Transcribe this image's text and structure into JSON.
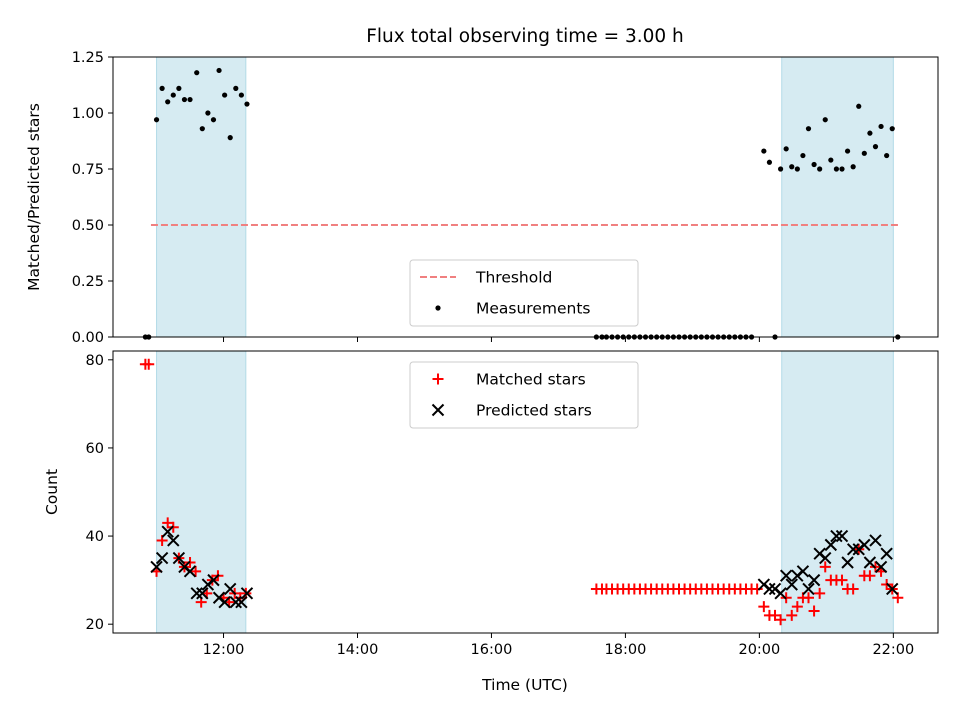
{
  "chart_data": {
    "type": "scatter",
    "title": "Flux total observing time = 3.00 h",
    "xlabel": "Time (UTC)",
    "x_unit": "hours UTC",
    "xlim": [
      "10:21",
      "22:40"
    ],
    "xticks": [
      "12:00",
      "14:00",
      "16:00",
      "18:00",
      "20:00",
      "22:00"
    ],
    "shaded_spans": [
      {
        "start": "11:00",
        "end": "12:20",
        "color": "#add8e6"
      },
      {
        "start": "20:20",
        "end": "22:00",
        "color": "#add8e6"
      }
    ],
    "panels": [
      {
        "name": "ratio",
        "ylabel": "Matched/Predicted stars",
        "ylim": [
          0,
          1.25
        ],
        "yticks": [
          "0.00",
          "0.25",
          "0.50",
          "0.75",
          "1.00",
          "1.25"
        ],
        "legend": "lower-center",
        "series": [
          {
            "name": "Threshold",
            "type": "hline",
            "y": 0.5,
            "x_range": [
              "10:55",
              "22:05"
            ],
            "color": "#f08080",
            "style": "dashed"
          },
          {
            "name": "Measurements",
            "type": "dots",
            "color": "#000000",
            "points": [
              [
                "10:50",
                0.0
              ],
              [
                "10:53",
                0.0
              ],
              [
                "11:00",
                0.97
              ],
              [
                "11:05",
                1.11
              ],
              [
                "11:10",
                1.05
              ],
              [
                "11:15",
                1.08
              ],
              [
                "11:20",
                1.11
              ],
              [
                "11:25",
                1.06
              ],
              [
                "11:30",
                1.06
              ],
              [
                "11:36",
                1.18
              ],
              [
                "11:41",
                0.93
              ],
              [
                "11:46",
                1.0
              ],
              [
                "11:51",
                0.97
              ],
              [
                "11:56",
                1.19
              ],
              [
                "12:01",
                1.08
              ],
              [
                "12:06",
                0.89
              ],
              [
                "12:11",
                1.11
              ],
              [
                "12:16",
                1.08
              ],
              [
                "12:21",
                1.04
              ],
              [
                "17:34",
                0.0
              ],
              [
                "17:39",
                0.0
              ],
              [
                "17:43",
                0.0
              ],
              [
                "17:48",
                0.0
              ],
              [
                "17:53",
                0.0
              ],
              [
                "17:58",
                0.0
              ],
              [
                "18:03",
                0.0
              ],
              [
                "18:08",
                0.0
              ],
              [
                "18:13",
                0.0
              ],
              [
                "18:18",
                0.0
              ],
              [
                "18:23",
                0.0
              ],
              [
                "18:28",
                0.0
              ],
              [
                "18:33",
                0.0
              ],
              [
                "18:38",
                0.0
              ],
              [
                "18:43",
                0.0
              ],
              [
                "18:48",
                0.0
              ],
              [
                "18:53",
                0.0
              ],
              [
                "18:58",
                0.0
              ],
              [
                "19:03",
                0.0
              ],
              [
                "19:08",
                0.0
              ],
              [
                "19:13",
                0.0
              ],
              [
                "19:18",
                0.0
              ],
              [
                "19:23",
                0.0
              ],
              [
                "19:28",
                0.0
              ],
              [
                "19:33",
                0.0
              ],
              [
                "19:38",
                0.0
              ],
              [
                "19:43",
                0.0
              ],
              [
                "19:48",
                0.0
              ],
              [
                "19:53",
                0.0
              ],
              [
                "20:04",
                0.83
              ],
              [
                "20:09",
                0.78
              ],
              [
                "20:14",
                0.0
              ],
              [
                "20:19",
                0.75
              ],
              [
                "20:24",
                0.84
              ],
              [
                "20:29",
                0.76
              ],
              [
                "20:34",
                0.75
              ],
              [
                "20:39",
                0.81
              ],
              [
                "20:44",
                0.93
              ],
              [
                "20:49",
                0.77
              ],
              [
                "20:54",
                0.75
              ],
              [
                "20:59",
                0.97
              ],
              [
                "21:04",
                0.79
              ],
              [
                "21:09",
                0.75
              ],
              [
                "21:14",
                0.75
              ],
              [
                "21:19",
                0.83
              ],
              [
                "21:24",
                0.76
              ],
              [
                "21:29",
                1.03
              ],
              [
                "21:34",
                0.82
              ],
              [
                "21:39",
                0.91
              ],
              [
                "21:44",
                0.85
              ],
              [
                "21:49",
                0.94
              ],
              [
                "21:54",
                0.81
              ],
              [
                "21:59",
                0.93
              ],
              [
                "22:04",
                0.0
              ]
            ]
          }
        ]
      },
      {
        "name": "counts",
        "ylabel": "Count",
        "ylim": [
          18,
          82
        ],
        "yticks": [
          "20",
          "40",
          "60",
          "80"
        ],
        "legend": "upper-center",
        "series": [
          {
            "name": "Matched stars",
            "marker": "+",
            "color": "#ff0000",
            "points": [
              [
                "10:50",
                79
              ],
              [
                "10:53",
                79
              ],
              [
                "11:00",
                32
              ],
              [
                "11:05",
                39
              ],
              [
                "11:10",
                43
              ],
              [
                "11:15",
                42
              ],
              [
                "11:20",
                35
              ],
              [
                "11:25",
                33
              ],
              [
                "11:30",
                34
              ],
              [
                "11:35",
                32
              ],
              [
                "11:40",
                25
              ],
              [
                "11:45",
                27
              ],
              [
                "11:50",
                30
              ],
              [
                "11:55",
                31
              ],
              [
                "12:00",
                26
              ],
              [
                "12:05",
                25
              ],
              [
                "12:10",
                27
              ],
              [
                "12:15",
                26
              ],
              [
                "12:20",
                27
              ],
              [
                "17:34",
                28
              ],
              [
                "17:39",
                28
              ],
              [
                "17:43",
                28
              ],
              [
                "17:48",
                28
              ],
              [
                "17:53",
                28
              ],
              [
                "17:58",
                28
              ],
              [
                "18:03",
                28
              ],
              [
                "18:08",
                28
              ],
              [
                "18:13",
                28
              ],
              [
                "18:18",
                28
              ],
              [
                "18:23",
                28
              ],
              [
                "18:28",
                28
              ],
              [
                "18:33",
                28
              ],
              [
                "18:38",
                28
              ],
              [
                "18:43",
                28
              ],
              [
                "18:48",
                28
              ],
              [
                "18:53",
                28
              ],
              [
                "18:58",
                28
              ],
              [
                "19:03",
                28
              ],
              [
                "19:08",
                28
              ],
              [
                "19:13",
                28
              ],
              [
                "19:18",
                28
              ],
              [
                "19:23",
                28
              ],
              [
                "19:28",
                28
              ],
              [
                "19:33",
                28
              ],
              [
                "19:38",
                28
              ],
              [
                "19:43",
                28
              ],
              [
                "19:48",
                28
              ],
              [
                "19:53",
                28
              ],
              [
                "19:58",
                28
              ],
              [
                "20:04",
                24
              ],
              [
                "20:09",
                22
              ],
              [
                "20:14",
                22
              ],
              [
                "20:19",
                21
              ],
              [
                "20:24",
                26
              ],
              [
                "20:29",
                22
              ],
              [
                "20:34",
                24
              ],
              [
                "20:39",
                26
              ],
              [
                "20:44",
                26
              ],
              [
                "20:49",
                23
              ],
              [
                "20:54",
                27
              ],
              [
                "20:59",
                33
              ],
              [
                "21:04",
                30
              ],
              [
                "21:09",
                30
              ],
              [
                "21:14",
                30
              ],
              [
                "21:19",
                28
              ],
              [
                "21:24",
                28
              ],
              [
                "21:29",
                37
              ],
              [
                "21:34",
                31
              ],
              [
                "21:39",
                31
              ],
              [
                "21:44",
                33
              ],
              [
                "21:49",
                32
              ],
              [
                "21:54",
                29
              ],
              [
                "21:59",
                28
              ],
              [
                "22:04",
                26
              ]
            ]
          },
          {
            "name": "Predicted stars",
            "marker": "x",
            "color": "#000000",
            "points": [
              [
                "11:00",
                33
              ],
              [
                "11:05",
                35
              ],
              [
                "11:10",
                41
              ],
              [
                "11:15",
                39
              ],
              [
                "11:20",
                35
              ],
              [
                "11:25",
                33
              ],
              [
                "11:30",
                32
              ],
              [
                "11:36",
                27
              ],
              [
                "11:41",
                27
              ],
              [
                "11:46",
                29
              ],
              [
                "11:51",
                30
              ],
              [
                "11:56",
                26
              ],
              [
                "12:01",
                25
              ],
              [
                "12:06",
                28
              ],
              [
                "12:11",
                25
              ],
              [
                "12:16",
                25
              ],
              [
                "12:21",
                27
              ],
              [
                "20:04",
                29
              ],
              [
                "20:09",
                28
              ],
              [
                "20:14",
                28
              ],
              [
                "20:19",
                27
              ],
              [
                "20:24",
                31
              ],
              [
                "20:29",
                29
              ],
              [
                "20:34",
                31
              ],
              [
                "20:39",
                32
              ],
              [
                "20:44",
                28
              ],
              [
                "20:49",
                30
              ],
              [
                "20:54",
                36
              ],
              [
                "20:59",
                35
              ],
              [
                "21:04",
                38
              ],
              [
                "21:09",
                40
              ],
              [
                "21:14",
                40
              ],
              [
                "21:19",
                34
              ],
              [
                "21:24",
                37
              ],
              [
                "21:29",
                37
              ],
              [
                "21:34",
                38
              ],
              [
                "21:39",
                34
              ],
              [
                "21:44",
                39
              ],
              [
                "21:49",
                33
              ],
              [
                "21:54",
                36
              ],
              [
                "21:59",
                28
              ]
            ]
          }
        ]
      }
    ]
  }
}
